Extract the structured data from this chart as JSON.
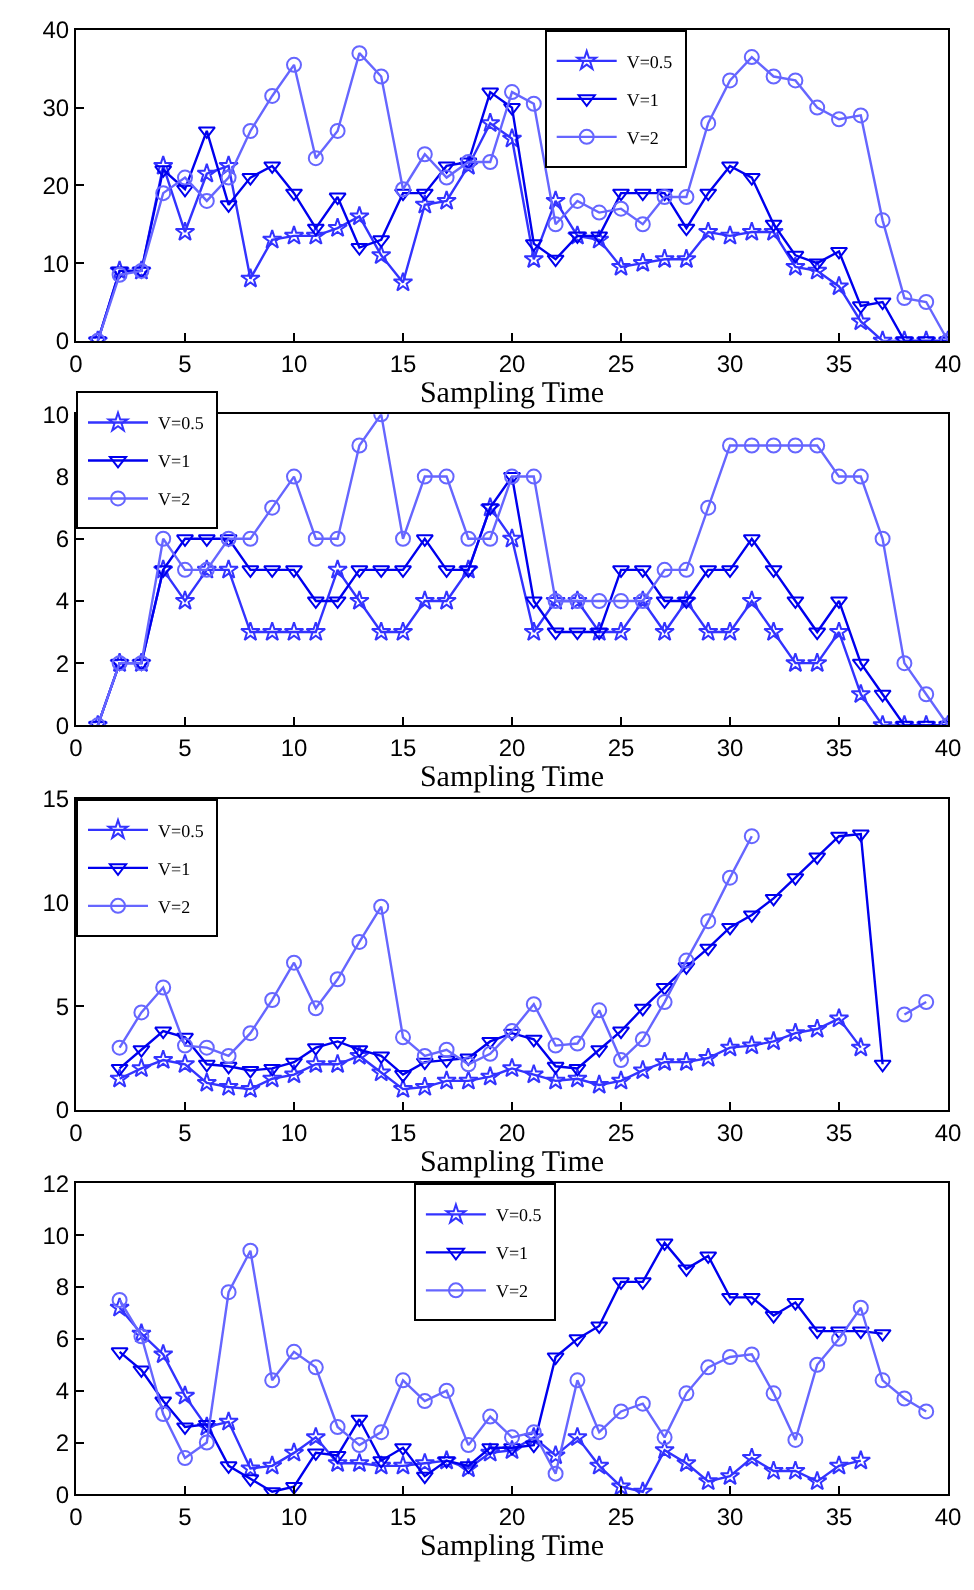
{
  "chart_data": [
    {
      "type": "line",
      "xlabel": "Sampling Time",
      "xlim": [
        0,
        40
      ],
      "xticks": [
        0,
        5,
        10,
        15,
        20,
        25,
        30,
        35,
        40
      ],
      "ylim": [
        0,
        40
      ],
      "yticks": [
        0,
        10,
        20,
        30,
        40
      ],
      "legend": "top",
      "line_style": "solid",
      "x": [
        1,
        2,
        3,
        4,
        5,
        6,
        7,
        8,
        9,
        10,
        11,
        12,
        13,
        14,
        15,
        16,
        17,
        18,
        19,
        20,
        21,
        22,
        23,
        24,
        25,
        26,
        27,
        28,
        29,
        30,
        31,
        32,
        33,
        34,
        35,
        36,
        37,
        38,
        39,
        40
      ],
      "series": [
        {
          "name": "V=0.5",
          "color": "#3333ff",
          "marker": "star",
          "values": [
            0,
            9,
            9,
            22.5,
            14,
            21.5,
            22.5,
            8,
            13,
            13.5,
            13.5,
            14.5,
            16,
            11,
            7.5,
            17.5,
            18,
            22.5,
            28,
            26,
            10.5,
            18,
            13.5,
            13,
            9.5,
            10,
            10.5,
            10.5,
            14,
            13.5,
            14,
            14,
            9.5,
            9,
            7,
            2.5,
            0,
            0,
            0,
            0
          ]
        },
        {
          "name": "V=1",
          "color": "#0000ee",
          "marker": "triangle",
          "values": [
            0,
            9,
            9,
            22,
            19.5,
            27,
            17.5,
            21,
            22.5,
            19,
            14.5,
            18.5,
            12,
            13,
            19,
            19,
            22.5,
            23,
            32,
            30,
            12.5,
            10.5,
            13.5,
            13.5,
            19,
            19,
            19,
            14.5,
            19,
            22.5,
            21,
            15,
            11,
            10,
            11.5,
            4.5,
            5,
            0,
            0,
            0
          ]
        },
        {
          "name": "V=2",
          "color": "#6666ff",
          "marker": "circle",
          "values": [
            0,
            8.5,
            9,
            19,
            21,
            18,
            21,
            27,
            31.5,
            35.5,
            23.5,
            27,
            37,
            34,
            19.5,
            24,
            21,
            23,
            23,
            32,
            30.5,
            15,
            18,
            16.5,
            17,
            15,
            18.5,
            18.5,
            28,
            33.5,
            36.5,
            34,
            33.5,
            30,
            28.5,
            29,
            15.5,
            5.5,
            5,
            0
          ]
        }
      ]
    },
    {
      "type": "line",
      "xlabel": "Sampling Time",
      "xlim": [
        0,
        40
      ],
      "xticks": [
        0,
        5,
        10,
        15,
        20,
        25,
        30,
        35,
        40
      ],
      "ylim": [
        0,
        10
      ],
      "yticks": [
        0,
        2,
        4,
        6,
        8,
        10
      ],
      "legend": "top left",
      "line_style": "solid",
      "x": [
        1,
        2,
        3,
        4,
        5,
        6,
        7,
        8,
        9,
        10,
        11,
        12,
        13,
        14,
        15,
        16,
        17,
        18,
        19,
        20,
        21,
        22,
        23,
        24,
        25,
        26,
        27,
        28,
        29,
        30,
        31,
        32,
        33,
        34,
        35,
        36,
        37,
        38,
        39,
        40
      ],
      "series": [
        {
          "name": "V=0.5",
          "color": "#3333ff",
          "marker": "star",
          "values": [
            0,
            2,
            2,
            5,
            4,
            5,
            5,
            3,
            3,
            3,
            3,
            5,
            4,
            3,
            3,
            4,
            4,
            5,
            7,
            6,
            3,
            4,
            4,
            3,
            3,
            4,
            3,
            4,
            3,
            3,
            4,
            3,
            2,
            2,
            3,
            1,
            0,
            0,
            0,
            0
          ]
        },
        {
          "name": "V=1",
          "color": "#0000ee",
          "marker": "triangle",
          "values": [
            0,
            2,
            2,
            5,
            6,
            6,
            6,
            5,
            5,
            5,
            4,
            4,
            5,
            5,
            5,
            6,
            5,
            5,
            7,
            8,
            4,
            3,
            3,
            3,
            5,
            5,
            4,
            4,
            5,
            5,
            6,
            5,
            4,
            3,
            4,
            2,
            1,
            0,
            0,
            0
          ]
        },
        {
          "name": "V=2",
          "color": "#6666ff",
          "marker": "circle",
          "values": [
            0,
            2,
            2,
            6,
            5,
            5,
            6,
            6,
            7,
            8,
            6,
            6,
            9,
            10,
            6,
            8,
            8,
            6,
            6,
            8,
            8,
            4,
            4,
            4,
            4,
            4,
            5,
            5,
            7,
            9,
            9,
            9,
            9,
            9,
            8,
            8,
            6,
            2,
            1,
            0
          ]
        }
      ]
    },
    {
      "type": "line",
      "xlabel": "Sampling Time",
      "xlim": [
        0,
        40
      ],
      "xticks": [
        0,
        5,
        10,
        15,
        20,
        25,
        30,
        35,
        40
      ],
      "ylim": [
        0,
        15
      ],
      "yticks": [
        0,
        5,
        10,
        15
      ],
      "legend": "top left",
      "line_style": "solid",
      "series": [
        {
          "name": "V=0.5",
          "color": "#3333ff",
          "marker": "star",
          "x": [
            2,
            3,
            4,
            5,
            6,
            7,
            8,
            9,
            10,
            11,
            12,
            13,
            14,
            15,
            16,
            17,
            18,
            19,
            20,
            21,
            22,
            23,
            24,
            25,
            26,
            27,
            28,
            29,
            30,
            31,
            32,
            33,
            34,
            35,
            36
          ],
          "values": [
            1.5,
            2,
            2.4,
            2.2,
            1.3,
            1.1,
            1.0,
            1.5,
            1.7,
            2.2,
            2.2,
            2.6,
            1.8,
            1.0,
            1.1,
            1.4,
            1.4,
            1.6,
            2.0,
            1.7,
            1.4,
            1.5,
            1.2,
            1.4,
            1.9,
            2.3,
            2.3,
            2.5,
            3.0,
            3.1,
            3.3,
            3.7,
            3.9,
            4.4,
            3.0
          ]
        },
        {
          "name": "V=1",
          "color": "#0000ee",
          "marker": "triangle",
          "x": [
            2,
            3,
            4,
            5,
            6,
            7,
            8,
            9,
            10,
            11,
            12,
            13,
            14,
            15,
            16,
            17,
            18,
            19,
            20,
            21,
            22,
            23,
            24,
            25,
            26,
            27,
            28,
            29,
            30,
            31,
            32,
            33,
            34,
            35,
            36,
            37
          ],
          "values": [
            2.0,
            2.9,
            3.8,
            3.5,
            2.2,
            2.1,
            1.9,
            2.0,
            2.3,
            3.0,
            3.3,
            2.9,
            2.6,
            1.7,
            2.3,
            2.4,
            2.5,
            3.3,
            3.7,
            3.4,
            2.1,
            2.0,
            2.9,
            3.8,
            4.9,
            5.9,
            6.9,
            7.8,
            8.8,
            9.4,
            10.2,
            11.2,
            12.2,
            13.2,
            13.3,
            2.2
          ]
        },
        {
          "name": "V=2",
          "color": "#6666ff",
          "marker": "circle",
          "x": [
            2,
            3,
            4,
            5,
            6,
            7,
            8,
            9,
            10,
            11,
            12,
            13,
            14,
            15,
            16,
            17,
            18,
            19,
            20,
            21,
            22,
            23,
            24,
            25,
            26,
            27,
            28,
            29,
            30,
            31,
            32,
            33,
            34,
            35,
            36,
            37,
            38,
            39
          ],
          "values": [
            3.0,
            4.7,
            5.9,
            3.1,
            3.0,
            2.6,
            3.7,
            5.3,
            7.1,
            4.9,
            6.3,
            8.1,
            9.8,
            3.5,
            2.6,
            2.9,
            2.2,
            2.7,
            3.8,
            5.1,
            3.1,
            3.2,
            4.8,
            2.4,
            3.4,
            5.2,
            7.2,
            9.1,
            11.2,
            13.2,
            null,
            null,
            null,
            null,
            null,
            null,
            4.6,
            5.2
          ]
        }
      ]
    },
    {
      "type": "line",
      "xlabel": "Sampling Time",
      "xlim": [
        0,
        40
      ],
      "xticks": [
        0,
        5,
        10,
        15,
        20,
        25,
        30,
        35,
        40
      ],
      "ylim": [
        0,
        12
      ],
      "yticks": [
        0,
        2,
        4,
        6,
        8,
        10,
        12
      ],
      "legend": "top",
      "line_style": "solid",
      "series": [
        {
          "name": "V=0.5",
          "color": "#3333ff",
          "marker": "star",
          "x": [
            2,
            3,
            4,
            5,
            6,
            7,
            8,
            9,
            10,
            11,
            12,
            13,
            14,
            15,
            16,
            17,
            18,
            19,
            20,
            21,
            22,
            23,
            24,
            25,
            26,
            27,
            28,
            29,
            30,
            31,
            32,
            33,
            34,
            35,
            36
          ],
          "values": [
            7.2,
            6.2,
            5.4,
            3.8,
            2.6,
            2.8,
            1.0,
            1.1,
            1.6,
            2.2,
            1.2,
            1.2,
            1.1,
            1.1,
            1.2,
            1.3,
            1.0,
            1.6,
            1.7,
            2.2,
            1.5,
            2.2,
            1.1,
            0.3,
            0.1,
            1.7,
            1.2,
            0.5,
            0.7,
            1.4,
            0.9,
            0.9,
            0.5,
            1.1,
            1.3
          ]
        },
        {
          "name": "V=1",
          "color": "#0000ee",
          "marker": "triangle",
          "x": [
            2,
            3,
            4,
            5,
            6,
            7,
            8,
            9,
            10,
            11,
            12,
            13,
            14,
            15,
            16,
            17,
            18,
            19,
            20,
            21,
            22,
            23,
            24,
            25,
            26,
            27,
            28,
            29,
            30,
            31,
            32,
            33,
            34,
            35,
            36,
            37
          ],
          "values": [
            5.5,
            4.8,
            3.6,
            2.6,
            2.7,
            1.1,
            0.6,
            0.1,
            0.3,
            1.6,
            1.5,
            2.9,
            1.3,
            1.8,
            0.7,
            1.3,
            1.1,
            1.8,
            1.8,
            1.9,
            5.3,
            6.0,
            6.5,
            8.2,
            8.2,
            9.7,
            8.7,
            9.2,
            7.6,
            7.6,
            6.9,
            7.4,
            6.3,
            6.3,
            6.3,
            6.2
          ]
        },
        {
          "name": "V=2",
          "color": "#6666ff",
          "marker": "circle",
          "x": [
            2,
            3,
            4,
            5,
            6,
            7,
            8,
            9,
            10,
            11,
            12,
            13,
            14,
            15,
            16,
            17,
            18,
            19,
            20,
            21,
            22,
            23,
            24,
            25,
            26,
            27,
            28,
            29,
            30,
            31,
            32,
            33,
            34,
            35,
            36,
            37,
            38,
            39
          ],
          "values": [
            7.5,
            6.1,
            3.1,
            1.4,
            2.0,
            7.8,
            9.4,
            4.4,
            5.5,
            4.9,
            2.6,
            1.9,
            2.4,
            4.4,
            3.6,
            4.0,
            1.9,
            3.0,
            2.2,
            2.4,
            0.8,
            4.4,
            2.4,
            3.2,
            3.5,
            2.2,
            3.9,
            4.9,
            5.3,
            5.4,
            3.9,
            2.1,
            5.0,
            6.0,
            7.2,
            4.4,
            3.7,
            3.2
          ]
        }
      ]
    }
  ]
}
